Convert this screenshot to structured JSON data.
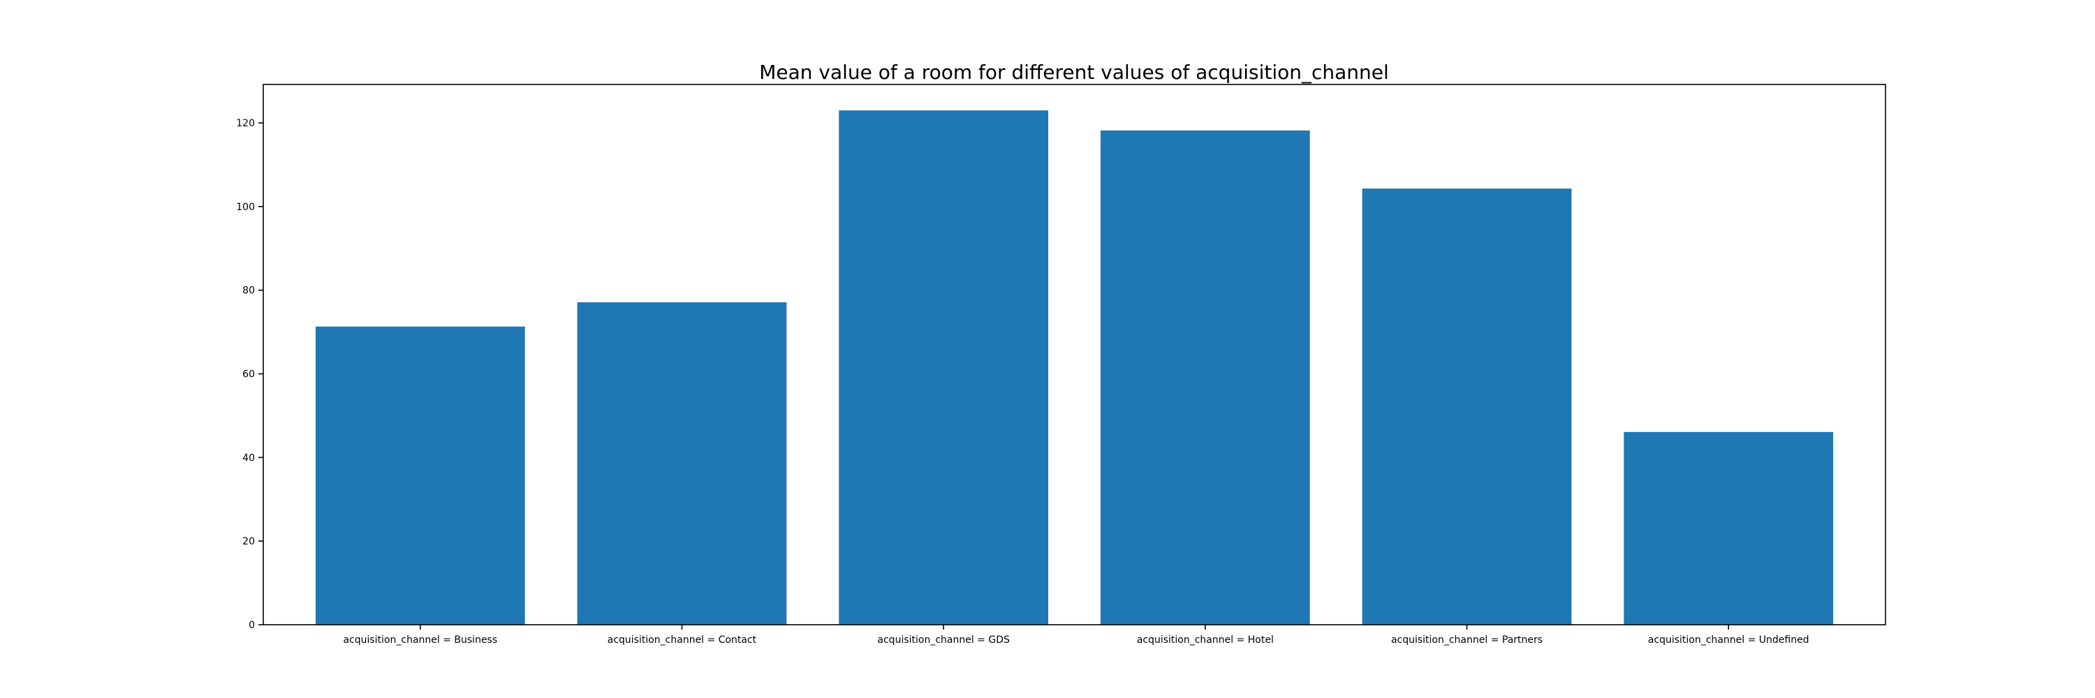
{
  "chart_data": {
    "type": "bar",
    "title": "Mean value of a room for different values of acquisition_channel",
    "xlabel": "",
    "ylabel": "",
    "categories": [
      "acquisition_channel = Business",
      "acquisition_channel = Contact",
      "acquisition_channel = GDS",
      "acquisition_channel = Hotel",
      "acquisition_channel = Partners",
      "acquisition_channel = Undefined"
    ],
    "values": [
      71.3,
      77.1,
      123.0,
      118.2,
      104.3,
      46.1
    ],
    "ylim": [
      0,
      129.2
    ],
    "yticks": [
      0,
      20,
      40,
      60,
      80,
      100,
      120
    ],
    "bar_color": "#1f77b4",
    "grid": false,
    "legend": "none"
  }
}
